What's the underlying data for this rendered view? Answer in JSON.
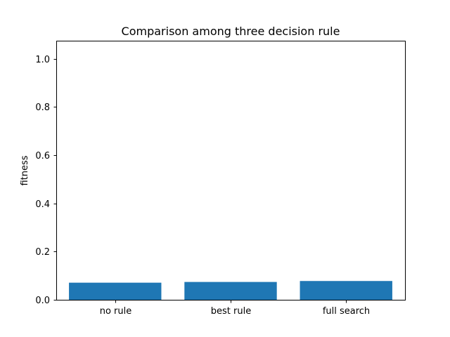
{
  "chart_data": {
    "type": "bar",
    "title": "Comparison among three decision rule",
    "xlabel": "",
    "ylabel": "fitness",
    "categories": [
      "no rule",
      "best rule",
      "full search"
    ],
    "values": [
      0.071,
      0.074,
      0.078
    ],
    "ylim": [
      0,
      1.075
    ],
    "yticks": [
      0.0,
      0.2,
      0.4,
      0.6,
      0.8,
      1.0
    ],
    "ytick_labels": [
      "0.0",
      "0.2",
      "0.4",
      "0.6",
      "0.8",
      "1.0"
    ],
    "grid": false,
    "legend": "none",
    "bar_color": "#1f77b4"
  }
}
